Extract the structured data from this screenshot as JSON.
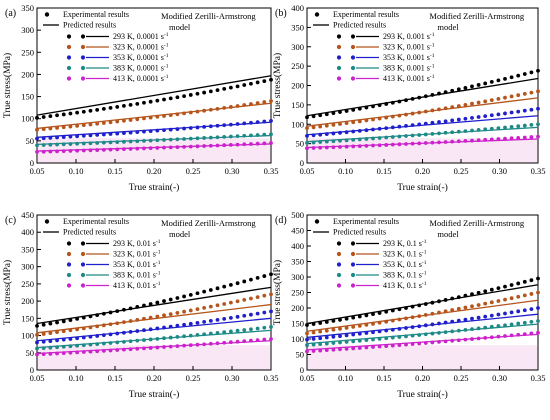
{
  "chart_data": [
    {
      "panel_label": "(a)",
      "type": "scatter",
      "xlabel": "True strain(-)",
      "ylabel": "True stress(MPa)",
      "xlim": [
        0.05,
        0.35
      ],
      "ylim": [
        0,
        350
      ],
      "xticks": [
        "0.05",
        "0.10",
        "0.15",
        "0.20",
        "0.25",
        "0.30",
        "0.35"
      ],
      "yticks": [
        "0",
        "50",
        "100",
        "150",
        "200",
        "250",
        "300",
        "350"
      ],
      "model_label": [
        "Modified Zerilli-Armstrong",
        "model"
      ],
      "legend_experimental": "Experimental results",
      "legend_predicted": "Predicted results",
      "series": [
        {
          "name": "293 K, 0.0001 s",
          "sup": "-1",
          "color": "#000000",
          "exp_start": 102,
          "exp_end": 188,
          "pred_start": 108,
          "pred_end": 197
        },
        {
          "name": "323 K, 0.0001 s",
          "sup": "-1",
          "color": "#b5541b",
          "exp_start": 75,
          "exp_end": 140,
          "pred_start": 78,
          "pred_end": 135
        },
        {
          "name": "353 K, 0.0001 s",
          "sup": "-1",
          "color": "#1f1fcc",
          "exp_start": 55,
          "exp_end": 95,
          "pred_start": 58,
          "pred_end": 92
        },
        {
          "name": "383 K, 0.0001 s",
          "sup": "-1",
          "color": "#1e8a88",
          "exp_start": 40,
          "exp_end": 65,
          "pred_start": 42,
          "pred_end": 62
        },
        {
          "name": "413 K, 0.0001 s",
          "sup": "-1",
          "color": "#cc22cc",
          "exp_start": 25,
          "exp_end": 45,
          "pred_start": 27,
          "pred_end": 43
        }
      ]
    },
    {
      "panel_label": "(b)",
      "type": "scatter",
      "xlabel": "True strain(-)",
      "ylabel": "True stress(MPa)",
      "xlim": [
        0.05,
        0.35
      ],
      "ylim": [
        0,
        400
      ],
      "xticks": [
        "0.05",
        "0.10",
        "0.15",
        "0.20",
        "0.25",
        "0.30",
        "0.35"
      ],
      "yticks": [
        "0",
        "50",
        "100",
        "150",
        "200",
        "250",
        "300",
        "350",
        "400"
      ],
      "model_label": [
        "Modified Zerilli-Armstrong",
        "model"
      ],
      "legend_experimental": "Experimental results",
      "legend_predicted": "Predicted results",
      "series": [
        {
          "name": "293 K, 0.001 s",
          "sup": "-1",
          "color": "#000000",
          "exp_start": 118,
          "exp_end": 238,
          "pred_start": 122,
          "pred_end": 218
        },
        {
          "name": "323 K, 0.001 s",
          "sup": "-1",
          "color": "#b5541b",
          "exp_start": 90,
          "exp_end": 185,
          "pred_start": 95,
          "pred_end": 168
        },
        {
          "name": "353 K, 0.001 s",
          "sup": "-1",
          "color": "#1f1fcc",
          "exp_start": 70,
          "exp_end": 140,
          "pred_start": 73,
          "pred_end": 122
        },
        {
          "name": "383 K, 0.001 s",
          "sup": "-1",
          "color": "#1e8a88",
          "exp_start": 52,
          "exp_end": 100,
          "pred_start": 55,
          "pred_end": 92
        },
        {
          "name": "413 K, 0.001 s",
          "sup": "-1",
          "color": "#cc22cc",
          "exp_start": 38,
          "exp_end": 68,
          "pred_start": 40,
          "pred_end": 62
        }
      ]
    },
    {
      "panel_label": "(c)",
      "type": "scatter",
      "xlabel": "True strain(-)",
      "ylabel": "True stress(MPa)",
      "xlim": [
        0.05,
        0.35
      ],
      "ylim": [
        0,
        450
      ],
      "xticks": [
        "0.05",
        "0.10",
        "0.15",
        "0.20",
        "0.25",
        "0.30",
        "0.35"
      ],
      "yticks": [
        "0",
        "50",
        "100",
        "150",
        "200",
        "250",
        "300",
        "350",
        "400",
        "450"
      ],
      "model_label": [
        "Modified Zerilli-Armstrong",
        "model"
      ],
      "legend_experimental": "Experimental results",
      "legend_predicted": "Predicted results",
      "series": [
        {
          "name": "293 K, 0.01 s",
          "sup": "-1",
          "color": "#000000",
          "exp_start": 128,
          "exp_end": 278,
          "pred_start": 135,
          "pred_end": 240
        },
        {
          "name": "323 K, 0.01 s",
          "sup": "-1",
          "color": "#b5541b",
          "exp_start": 102,
          "exp_end": 220,
          "pred_start": 108,
          "pred_end": 190
        },
        {
          "name": "353 K, 0.01 s",
          "sup": "-1",
          "color": "#1f1fcc",
          "exp_start": 80,
          "exp_end": 170,
          "pred_start": 85,
          "pred_end": 150
        },
        {
          "name": "383 K, 0.01 s",
          "sup": "-1",
          "color": "#1e8a88",
          "exp_start": 62,
          "exp_end": 125,
          "pred_start": 65,
          "pred_end": 115
        },
        {
          "name": "413 K, 0.01 s",
          "sup": "-1",
          "color": "#cc22cc",
          "exp_start": 45,
          "exp_end": 90,
          "pred_start": 48,
          "pred_end": 85
        }
      ]
    },
    {
      "panel_label": "(d)",
      "type": "scatter",
      "xlabel": "True strain(-)",
      "ylabel": "True stress(MPa)",
      "xlim": [
        0.05,
        0.35
      ],
      "ylim": [
        0,
        500
      ],
      "xticks": [
        "0.05",
        "0.10",
        "0.15",
        "0.20",
        "0.25",
        "0.30",
        "0.35"
      ],
      "yticks": [
        "0",
        "50",
        "100",
        "150",
        "200",
        "250",
        "300",
        "350",
        "400",
        "450",
        "500"
      ],
      "model_label": [
        "Modified Zerilli-Armstrong",
        "model"
      ],
      "legend_experimental": "Experimental results",
      "legend_predicted": "Predicted results",
      "series": [
        {
          "name": "293 K, 0.1 s",
          "sup": "-1",
          "color": "#000000",
          "exp_start": 145,
          "exp_end": 295,
          "pred_start": 150,
          "pred_end": 275
        },
        {
          "name": "323 K, 0.1 s",
          "sup": "-1",
          "color": "#b5541b",
          "exp_start": 118,
          "exp_end": 250,
          "pred_start": 125,
          "pred_end": 225
        },
        {
          "name": "353 K, 0.1 s",
          "sup": "-1",
          "color": "#1f1fcc",
          "exp_start": 98,
          "exp_end": 200,
          "pred_start": 105,
          "pred_end": 180
        },
        {
          "name": "383 K, 0.1 s",
          "sup": "-1",
          "color": "#1e8a88",
          "exp_start": 80,
          "exp_end": 158,
          "pred_start": 85,
          "pred_end": 148
        },
        {
          "name": "413 K, 0.1 s",
          "sup": "-1",
          "color": "#cc22cc",
          "exp_start": 60,
          "exp_end": 120,
          "pred_start": 65,
          "pred_end": 115
        }
      ]
    }
  ]
}
